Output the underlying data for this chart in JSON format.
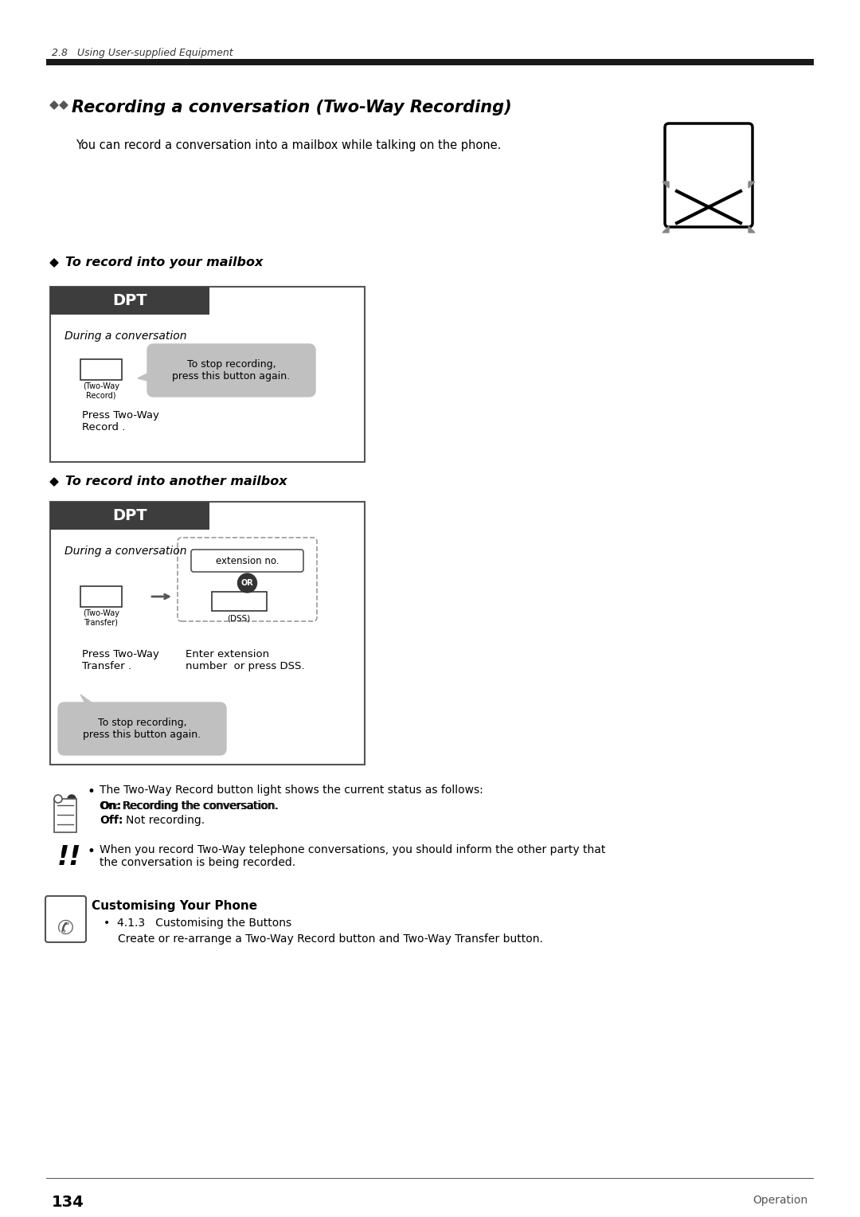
{
  "page_header": "2.8   Using User-supplied Equipment",
  "section_title": "Recording a conversation (Two-Way Recording)",
  "intro_text": "You can record a conversation into a mailbox while talking on the phone.",
  "subsection1_title": "◆ To record into your mailbox",
  "subsection2_title": "◆ To record into another mailbox",
  "dpt_bg": "#3d3d3d",
  "dpt_text": "DPT",
  "box_border": "#555555",
  "during_conversation": "During a conversation",
  "callout_text1": "To stop recording,\npress this button again.",
  "two_way_record_label": "(Two-Way\nRecord)",
  "press_two_way_record": "Press Two-Way\nRecord .",
  "two_way_transfer_label": "(Two-Way\nTransfer)",
  "press_two_way_transfer": "Press Two-Way\nTransfer .",
  "extension_no_label": "extension no.",
  "or_text": "OR",
  "dss_label": "(DSS)",
  "enter_ext": "Enter extension\nnumber  or press DSS.",
  "callout_text2": "To stop recording,\npress this button again.",
  "note1_text": "The Two-Way Record button light shows the current status as follows:",
  "note1_on": "On: Recording the conversation.",
  "note1_off": "Off: Not recording.",
  "note2_text": "When you record Two-Way telephone conversations, you should inform the other party that\nthe conversation is being recorded.",
  "customise_title": "Customising Your Phone",
  "customise_sub": "4.1.3   Customising the Buttons",
  "customise_detail": "Create or re-arrange a Two-Way Record button and Two-Way Transfer button.",
  "page_number": "134",
  "page_footer_right": "Operation",
  "bg_color": "#ffffff",
  "text_color": "#000000",
  "gray_color": "#aaaaaa"
}
